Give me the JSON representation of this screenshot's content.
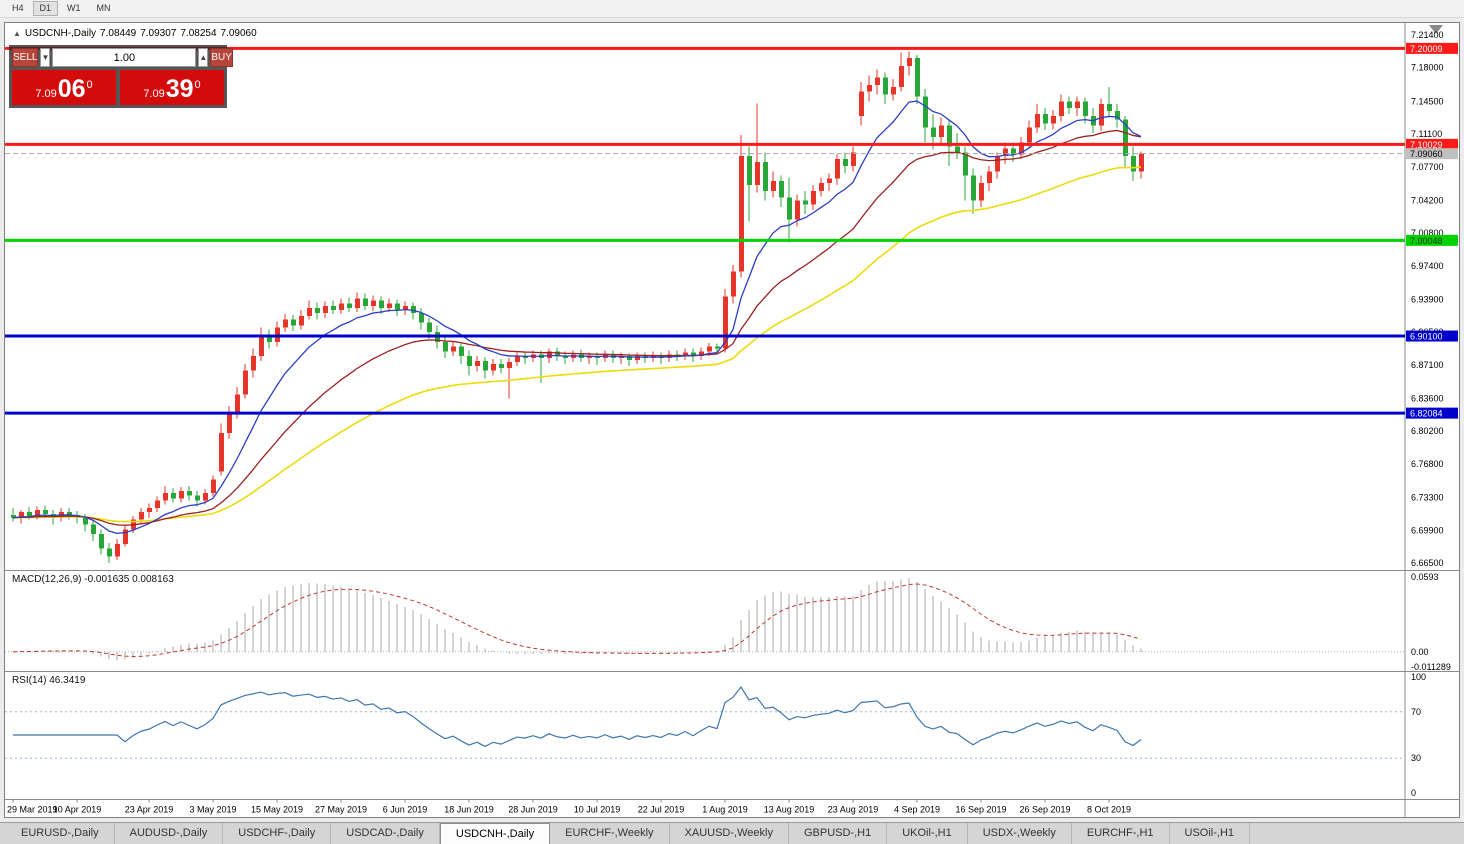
{
  "window": {
    "toolbar": {
      "buttons": [
        "H4",
        "D1",
        "W1",
        "MN"
      ],
      "active": "D1"
    }
  },
  "chart": {
    "header": {
      "symbol": "USDCNH-,Daily",
      "open": "7.08449",
      "high": "7.09307",
      "low": "7.08254",
      "close": "7.09060"
    },
    "trade_panel": {
      "sell_label": "SELL",
      "buy_label": "BUY",
      "volume": "1.00",
      "dec_icon": "▼",
      "inc_icon": "▲",
      "sell_price": {
        "small": "7.09",
        "big": "06",
        "sup": "0"
      },
      "buy_price": {
        "small": "7.09",
        "big": "39",
        "sup": "0"
      }
    },
    "colors": {
      "bull": "#e5342a",
      "bear": "#28a738",
      "ma_fast": "#2d3fc4",
      "ma_mid": "#9c2121",
      "ma_slow": "#ecdc0a",
      "macd_hist": "#a9a9a9",
      "macd_signal": "#c0392b",
      "rsi": "#3f76b0",
      "rsi_levels": "#9db6cf",
      "bid_line": "#a8a8a8",
      "bid_badge": "#c0c0c0"
    },
    "price_axis_ticks": [
      "7.21400",
      "7.18000",
      "7.14500",
      "7.11100",
      "7.07700",
      "7.04200",
      "7.00800",
      "6.97400",
      "6.93900",
      "6.90500",
      "6.87100",
      "6.83600",
      "6.80200",
      "6.76800",
      "6.73300",
      "6.69900",
      "6.66500"
    ],
    "levels": [
      {
        "price": 7.20009,
        "label": "7.20009",
        "color": "#ff1a1a",
        "text_color": "#ffffff",
        "width": 3
      },
      {
        "price": 7.10029,
        "label": "7.10029",
        "color": "#ff1a1a",
        "text_color": "#ffffff",
        "width": 3
      },
      {
        "price": 7.00048,
        "label": "7.00048",
        "color": "#00d300",
        "text_color": "#003300",
        "width": 3
      },
      {
        "price": 6.901,
        "label": "6.90100",
        "color": "#0000cc",
        "text_color": "#ffffff",
        "width": 3
      },
      {
        "price": 6.82084,
        "label": "6.82084",
        "color": "#0000cc",
        "text_color": "#ffffff",
        "width": 3
      }
    ],
    "current_price": {
      "value": 7.0906,
      "label": "7.09060"
    },
    "macd": {
      "label": "MACD(12,26,9) -0.001635 0.008163",
      "fast": 12,
      "slow": 26,
      "signal": 9,
      "axis_max": "0.0593",
      "axis_zero": "0.00",
      "axis_min": "-0.011289"
    },
    "rsi": {
      "label": "RSI(14) 46.3419",
      "period": 14,
      "axis": [
        "100",
        "70",
        "30",
        "0"
      ],
      "level_values": [
        70,
        30
      ]
    },
    "chart_data": {
      "type": "candlestick",
      "symbol": "USDCNH",
      "timeframe": "Daily",
      "y_range": [
        6.665,
        7.214
      ],
      "date_labels": [
        {
          "i": 0,
          "t": "29 Mar 2019"
        },
        {
          "i": 8,
          "t": "10 Apr 2019"
        },
        {
          "i": 17,
          "t": "23 Apr 2019"
        },
        {
          "i": 25,
          "t": "3 May 2019"
        },
        {
          "i": 33,
          "t": "15 May 2019"
        },
        {
          "i": 41,
          "t": "27 May 2019"
        },
        {
          "i": 49,
          "t": "6 Jun 2019"
        },
        {
          "i": 57,
          "t": "18 Jun 2019"
        },
        {
          "i": 65,
          "t": "28 Jun 2019"
        },
        {
          "i": 73,
          "t": "10 Jul 2019"
        },
        {
          "i": 81,
          "t": "22 Jul 2019"
        },
        {
          "i": 89,
          "t": "1 Aug 2019"
        },
        {
          "i": 97,
          "t": "13 Aug 2019"
        },
        {
          "i": 105,
          "t": "23 Aug 2019"
        },
        {
          "i": 113,
          "t": "4 Sep 2019"
        },
        {
          "i": 121,
          "t": "16 Sep 2019"
        },
        {
          "i": 129,
          "t": "26 Sep 2019"
        },
        {
          "i": 137,
          "t": "8 Oct 2019"
        }
      ],
      "candles": [
        [
          6.715,
          6.722,
          6.708,
          6.712
        ],
        [
          6.712,
          6.72,
          6.706,
          6.718
        ],
        [
          6.718,
          6.723,
          6.71,
          6.714
        ],
        [
          6.714,
          6.724,
          6.71,
          6.72
        ],
        [
          6.72,
          6.725,
          6.712,
          6.716
        ],
        [
          6.716,
          6.72,
          6.705,
          6.712
        ],
        [
          6.712,
          6.722,
          6.708,
          6.718
        ],
        [
          6.718,
          6.722,
          6.71,
          6.715
        ],
        [
          6.715,
          6.719,
          6.706,
          6.712
        ],
        [
          6.712,
          6.716,
          6.698,
          6.705
        ],
        [
          6.705,
          6.71,
          6.688,
          6.695
        ],
        [
          6.695,
          6.7,
          6.674,
          6.68
        ],
        [
          6.68,
          6.686,
          6.665,
          6.672
        ],
        [
          6.672,
          6.69,
          6.668,
          6.685
        ],
        [
          6.685,
          6.705,
          6.682,
          6.7
        ],
        [
          6.7,
          6.714,
          6.696,
          6.71
        ],
        [
          6.71,
          6.722,
          6.705,
          6.718
        ],
        [
          6.718,
          6.727,
          6.712,
          6.722
        ],
        [
          6.722,
          6.734,
          6.718,
          6.73
        ],
        [
          6.73,
          6.745,
          6.726,
          6.738
        ],
        [
          6.738,
          6.743,
          6.728,
          6.732
        ],
        [
          6.732,
          6.744,
          6.728,
          6.74
        ],
        [
          6.74,
          6.745,
          6.73,
          6.735
        ],
        [
          6.735,
          6.74,
          6.724,
          6.73
        ],
        [
          6.73,
          6.742,
          6.726,
          6.738
        ],
        [
          6.738,
          6.756,
          6.734,
          6.752
        ],
        [
          6.76,
          6.81,
          6.756,
          6.8
        ],
        [
          6.8,
          6.828,
          6.794,
          6.82
        ],
        [
          6.82,
          6.848,
          6.815,
          6.84
        ],
        [
          6.84,
          6.872,
          6.836,
          6.865
        ],
        [
          6.865,
          6.888,
          6.858,
          6.88
        ],
        [
          6.88,
          6.91,
          6.875,
          6.9
        ],
        [
          6.9,
          6.908,
          6.888,
          6.895
        ],
        [
          6.895,
          6.916,
          6.89,
          6.91
        ],
        [
          6.91,
          6.924,
          6.905,
          6.918
        ],
        [
          6.918,
          6.923,
          6.906,
          6.912
        ],
        [
          6.912,
          6.928,
          6.908,
          6.922
        ],
        [
          6.922,
          6.938,
          6.918,
          6.93
        ],
        [
          6.93,
          6.936,
          6.918,
          6.925
        ],
        [
          6.925,
          6.937,
          6.92,
          6.932
        ],
        [
          6.932,
          6.938,
          6.924,
          6.928
        ],
        [
          6.928,
          6.94,
          6.924,
          6.935
        ],
        [
          6.935,
          6.941,
          6.926,
          6.93
        ],
        [
          6.93,
          6.946,
          6.926,
          6.94
        ],
        [
          6.94,
          6.945,
          6.928,
          6.932
        ],
        [
          6.932,
          6.943,
          6.927,
          6.938
        ],
        [
          6.938,
          6.942,
          6.924,
          6.93
        ],
        [
          6.93,
          6.94,
          6.926,
          6.935
        ],
        [
          6.935,
          6.939,
          6.922,
          6.928
        ],
        [
          6.928,
          6.937,
          6.923,
          6.932
        ],
        [
          6.932,
          6.936,
          6.918,
          6.925
        ],
        [
          6.925,
          6.93,
          6.908,
          6.915
        ],
        [
          6.915,
          6.92,
          6.898,
          6.905
        ],
        [
          6.905,
          6.912,
          6.888,
          6.895
        ],
        [
          6.895,
          6.9,
          6.878,
          6.885
        ],
        [
          6.885,
          6.896,
          6.88,
          6.89
        ],
        [
          6.89,
          6.894,
          6.872,
          6.88
        ],
        [
          6.88,
          6.886,
          6.86,
          6.87
        ],
        [
          6.87,
          6.88,
          6.864,
          6.875
        ],
        [
          6.875,
          6.879,
          6.857,
          6.865
        ],
        [
          6.865,
          6.877,
          6.86,
          6.872
        ],
        [
          6.872,
          6.877,
          6.862,
          6.868
        ],
        [
          6.868,
          6.878,
          6.836,
          6.874
        ],
        [
          6.874,
          6.884,
          6.87,
          6.88
        ],
        [
          6.88,
          6.885,
          6.872,
          6.878
        ],
        [
          6.878,
          6.886,
          6.874,
          6.882
        ],
        [
          6.882,
          6.886,
          6.852,
          6.878
        ],
        [
          6.878,
          6.888,
          6.873,
          6.885
        ],
        [
          6.885,
          6.889,
          6.875,
          6.88
        ],
        [
          6.88,
          6.885,
          6.872,
          6.878
        ],
        [
          6.878,
          6.886,
          6.874,
          6.882
        ],
        [
          6.882,
          6.887,
          6.874,
          6.878
        ],
        [
          6.878,
          6.884,
          6.872,
          6.88
        ],
        [
          6.88,
          6.884,
          6.871,
          6.878
        ],
        [
          6.878,
          6.886,
          6.874,
          6.882
        ],
        [
          6.882,
          6.886,
          6.873,
          6.878
        ],
        [
          6.878,
          6.884,
          6.872,
          6.88
        ],
        [
          6.88,
          6.883,
          6.87,
          6.876
        ],
        [
          6.876,
          6.884,
          6.872,
          6.88
        ],
        [
          6.88,
          6.884,
          6.873,
          6.878
        ],
        [
          6.878,
          6.885,
          6.874,
          6.88
        ],
        [
          6.88,
          6.884,
          6.872,
          6.878
        ],
        [
          6.878,
          6.886,
          6.874,
          6.882
        ],
        [
          6.882,
          6.886,
          6.875,
          6.88
        ],
        [
          6.88,
          6.888,
          6.876,
          6.884
        ],
        [
          6.884,
          6.888,
          6.874,
          6.88
        ],
        [
          6.88,
          6.889,
          6.876,
          6.885
        ],
        [
          6.885,
          6.894,
          6.88,
          6.89
        ],
        [
          6.89,
          6.893,
          6.882,
          6.888
        ],
        [
          6.888,
          6.95,
          6.884,
          6.942
        ],
        [
          6.942,
          6.975,
          6.935,
          6.968
        ],
        [
          6.968,
          7.11,
          6.962,
          7.088
        ],
        [
          7.088,
          7.098,
          7.02,
          7.058
        ],
        [
          7.058,
          7.143,
          7.05,
          7.082
        ],
        [
          7.082,
          7.092,
          7.042,
          7.052
        ],
        [
          7.052,
          7.072,
          7.045,
          7.062
        ],
        [
          7.062,
          7.068,
          7.035,
          7.045
        ],
        [
          7.045,
          7.066,
          6.998,
          7.022
        ],
        [
          7.022,
          7.048,
          7.015,
          7.042
        ],
        [
          7.042,
          7.052,
          7.028,
          7.038
        ],
        [
          7.038,
          7.058,
          7.032,
          7.052
        ],
        [
          7.052,
          7.066,
          7.046,
          7.06
        ],
        [
          7.06,
          7.07,
          7.052,
          7.065
        ],
        [
          7.065,
          7.09,
          7.058,
          7.085
        ],
        [
          7.085,
          7.092,
          7.07,
          7.078
        ],
        [
          7.078,
          7.098,
          7.072,
          7.092
        ],
        [
          7.13,
          7.165,
          7.12,
          7.155
        ],
        [
          7.155,
          7.172,
          7.145,
          7.162
        ],
        [
          7.162,
          7.178,
          7.152,
          7.17
        ],
        [
          7.17,
          7.175,
          7.142,
          7.152
        ],
        [
          7.152,
          7.168,
          7.146,
          7.16
        ],
        [
          7.16,
          7.196,
          7.155,
          7.182
        ],
        [
          7.182,
          7.197,
          7.172,
          7.19
        ],
        [
          7.19,
          7.193,
          7.142,
          7.15
        ],
        [
          7.15,
          7.158,
          7.102,
          7.118
        ],
        [
          7.118,
          7.132,
          7.095,
          7.108
        ],
        [
          7.108,
          7.128,
          7.1,
          7.12
        ],
        [
          7.12,
          7.125,
          7.078,
          7.098
        ],
        [
          7.098,
          7.112,
          7.085,
          7.092
        ],
        [
          7.092,
          7.098,
          7.042,
          7.068
        ],
        [
          7.068,
          7.075,
          7.028,
          7.042
        ],
        [
          7.042,
          7.068,
          7.035,
          7.06
        ],
        [
          7.06,
          7.078,
          7.052,
          7.072
        ],
        [
          7.072,
          7.092,
          7.065,
          7.088
        ],
        [
          7.088,
          7.102,
          7.08,
          7.096
        ],
        [
          7.096,
          7.102,
          7.082,
          7.09
        ],
        [
          7.09,
          7.108,
          7.085,
          7.102
        ],
        [
          7.102,
          7.125,
          7.096,
          7.118
        ],
        [
          7.118,
          7.142,
          7.112,
          7.132
        ],
        [
          7.132,
          7.138,
          7.115,
          7.122
        ],
        [
          7.122,
          7.136,
          7.116,
          7.13
        ],
        [
          7.13,
          7.152,
          7.124,
          7.145
        ],
        [
          7.145,
          7.15,
          7.132,
          7.138
        ],
        [
          7.138,
          7.15,
          7.13,
          7.145
        ],
        [
          7.145,
          7.149,
          7.122,
          7.13
        ],
        [
          7.13,
          7.138,
          7.112,
          7.12
        ],
        [
          7.12,
          7.148,
          7.114,
          7.142
        ],
        [
          7.142,
          7.16,
          7.13,
          7.135
        ],
        [
          7.135,
          7.142,
          7.118,
          7.126
        ],
        [
          7.126,
          7.13,
          7.075,
          7.088
        ],
        [
          7.088,
          7.098,
          7.062,
          7.072
        ],
        [
          7.072,
          7.093,
          7.065,
          7.091
        ]
      ]
    }
  },
  "tabbar": {
    "active_index": 4,
    "tabs": [
      {
        "label": "EURUSD-,Daily"
      },
      {
        "label": "AUDUSD-,Daily"
      },
      {
        "label": "USDCHF-,Daily"
      },
      {
        "label": "USDCAD-,Daily"
      },
      {
        "label": "USDCNH-,Daily"
      },
      {
        "label": "EURCHF-,Weekly"
      },
      {
        "label": "XAUUSD-,Weekly"
      },
      {
        "label": "GBPUSD-,H1"
      },
      {
        "label": "UKOil-,H1"
      },
      {
        "label": "USDX-,Weekly"
      },
      {
        "label": "EURCHF-,H1"
      },
      {
        "label": "USOil-,H1"
      }
    ]
  }
}
